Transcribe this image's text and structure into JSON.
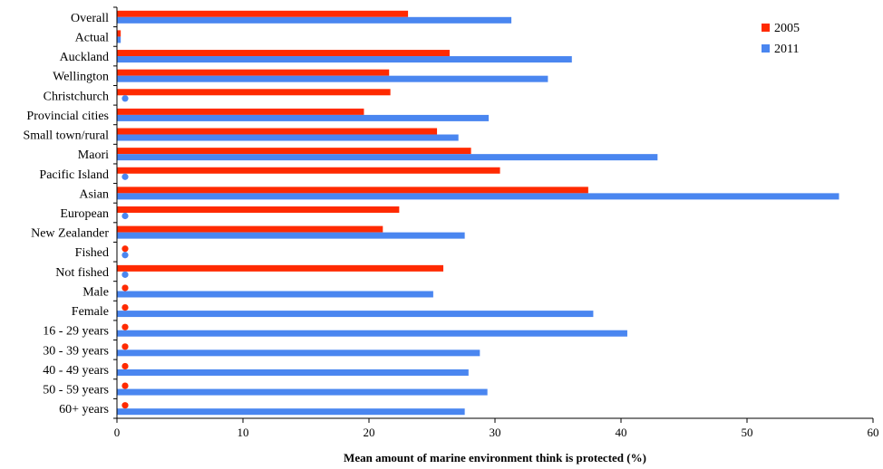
{
  "chart_data": {
    "type": "bar",
    "orientation": "horizontal",
    "xlabel": "Mean amount of marine environment think is protected (%)",
    "ylabel": "",
    "xlim": [
      0,
      60
    ],
    "xticks": [
      0,
      10,
      20,
      30,
      40,
      50,
      60
    ],
    "grid": false,
    "legend_position": "top-right",
    "categories": [
      "Overall",
      "Actual",
      "Auckland",
      "Wellington",
      "Christchurch",
      "Provincial cities",
      "Small town/rural",
      "Maori",
      "Pacific Island",
      "Asian",
      "European",
      "New Zealander",
      "Fished",
      "Not fished",
      "Male",
      "Female",
      "16 - 29 years",
      "30 - 39 years",
      "40 - 49 years",
      "50 - 59 years",
      "60+ years"
    ],
    "series": [
      {
        "name": "2005",
        "color": "#ff2a00",
        "values": [
          23.1,
          0.3,
          26.4,
          21.6,
          21.7,
          19.6,
          25.4,
          28.1,
          30.4,
          37.4,
          22.4,
          21.1,
          null,
          25.9,
          null,
          null,
          null,
          null,
          null,
          null,
          null
        ]
      },
      {
        "name": "2011",
        "color": "#4a86f0",
        "values": [
          31.3,
          0.3,
          36.1,
          34.2,
          null,
          29.5,
          27.1,
          42.9,
          null,
          57.3,
          null,
          27.6,
          null,
          null,
          25.1,
          37.8,
          40.5,
          28.8,
          27.9,
          29.4,
          27.6
        ]
      }
    ]
  }
}
